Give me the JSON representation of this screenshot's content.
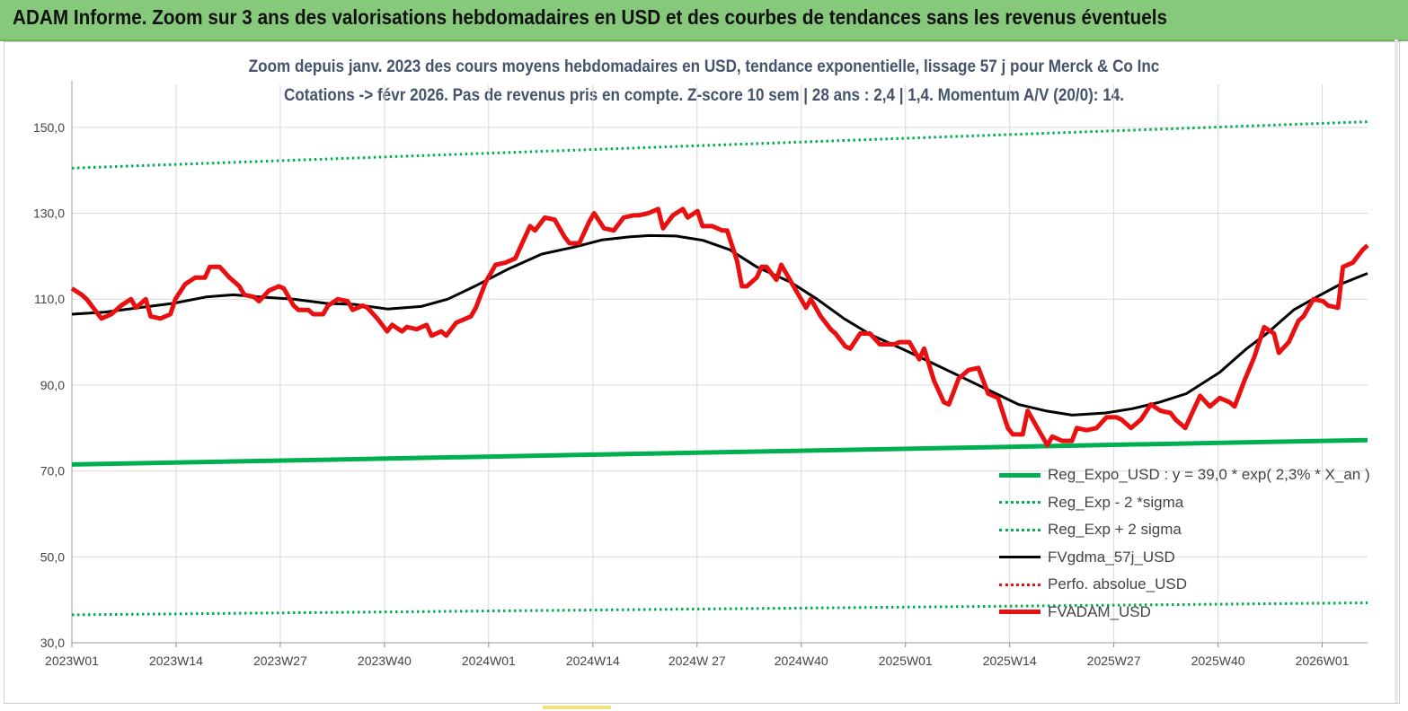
{
  "banner": {
    "title": "ADAM Informe. Zoom sur 3 ans des valorisations hebdomadaires en USD et des courbes de tendances sans les revenus éventuels"
  },
  "colors": {
    "banner_bg": "#86c97a",
    "title_text": "#44546a",
    "reg_expo": "#00b050",
    "band": "#00b050",
    "smooth": "#000000",
    "price": "#e81010",
    "perfo": "#e81010",
    "grid": "#d9d9d9"
  },
  "chart_data": {
    "type": "line",
    "title_line1": "Zoom depuis janv. 2023 des cours moyens hebdomadaires en USD, tendance exponentielle, lissage 57 j pour Merck & Co Inc",
    "title_line2": "Cotations -> févr 2026.  Pas de revenus pris en compte. Z-score 10 sem  | 28 ans : 2,4  | 1,4. Momentum A/V (20/0): 14.",
    "xlabel": "",
    "ylabel": "",
    "ylim": [
      30,
      160
    ],
    "y_ticks": [
      "30,0",
      "50,0",
      "70,0",
      "90,0",
      "110,0",
      "130,0",
      "150,0"
    ],
    "x_tick_labels": [
      "2023W01",
      "2023W14",
      "2023W27",
      "2023W40",
      "2024W01",
      "2024W14",
      "2024W 27",
      "2024W40",
      "2025W01",
      "2025W14",
      "2025W27",
      "2025W40",
      "2026W01"
    ],
    "x_range_weeks": [
      0,
      166
    ],
    "grid": true,
    "legend_position": "bottom-right",
    "series": [
      {
        "name": "Reg_Expo_USD : y = 39,0 * exp( 2,3% *  X_an )",
        "style": "solid-thick",
        "color": "#00b050",
        "points": [
          [
            0,
            71.5
          ],
          [
            166,
            77.2
          ]
        ]
      },
      {
        "name": "Reg_Exp - 2 *sigma",
        "style": "dotted",
        "color": "#00b050",
        "points": [
          [
            0,
            36.5
          ],
          [
            166,
            39.3
          ]
        ]
      },
      {
        "name": "Reg_Exp + 2 sigma",
        "style": "dotted",
        "color": "#00b050",
        "points": [
          [
            0,
            140.5
          ],
          [
            166,
            151.3
          ]
        ]
      },
      {
        "name": "FVgdma_57j_USD",
        "style": "solid",
        "color": "#000000",
        "points": [
          [
            0,
            106.5
          ],
          [
            5,
            107
          ],
          [
            10,
            108
          ],
          [
            15,
            109
          ],
          [
            20,
            110.5
          ],
          [
            24,
            111
          ],
          [
            28,
            110.5
          ],
          [
            33,
            110
          ],
          [
            38,
            109
          ],
          [
            42,
            108.8
          ],
          [
            47,
            107.7
          ],
          [
            52,
            108.3
          ],
          [
            56,
            110
          ],
          [
            60,
            113
          ],
          [
            65,
            117
          ],
          [
            70,
            120.5
          ],
          [
            75,
            122.2
          ],
          [
            79,
            123.8
          ],
          [
            83,
            124.5
          ],
          [
            86,
            124.8
          ],
          [
            90,
            124.7
          ],
          [
            94,
            123.7
          ],
          [
            98,
            121.5
          ],
          [
            102,
            117.5
          ],
          [
            107,
            114
          ],
          [
            111,
            110
          ],
          [
            115,
            105.5
          ],
          [
            119,
            101.7
          ],
          [
            124,
            98.2
          ],
          [
            129,
            94.5
          ],
          [
            133,
            91.5
          ],
          [
            137,
            88.5
          ],
          [
            141,
            85.5
          ],
          [
            145,
            84
          ],
          [
            149,
            83
          ],
          [
            154,
            83.5
          ],
          [
            158,
            84.5
          ],
          [
            162,
            86
          ],
          [
            166,
            88
          ],
          [
            171,
            93
          ],
          [
            175,
            98.5
          ],
          [
            178,
            102
          ],
          [
            182,
            107.5
          ],
          [
            186,
            111
          ],
          [
            189,
            113.5
          ],
          [
            193,
            116
          ]
        ]
      },
      {
        "name": "Perfo. absolue_USD",
        "style": "dotted",
        "color": "#e81010",
        "points": []
      },
      {
        "name": "FVADAM_USD",
        "style": "solid-thick",
        "color": "#e81010",
        "points": [
          [
            0,
            112.5
          ],
          [
            2,
            111
          ],
          [
            3,
            110
          ],
          [
            5,
            107
          ],
          [
            6,
            105.5
          ],
          [
            8,
            106.5
          ],
          [
            10,
            108.5
          ],
          [
            12,
            110
          ],
          [
            13,
            108
          ],
          [
            15,
            110
          ],
          [
            16,
            106
          ],
          [
            18,
            105.5
          ],
          [
            20,
            106.5
          ],
          [
            21,
            110
          ],
          [
            23,
            113.5
          ],
          [
            25,
            115
          ],
          [
            27,
            115
          ],
          [
            28,
            117.5
          ],
          [
            30,
            117.5
          ],
          [
            32,
            115
          ],
          [
            34,
            113
          ],
          [
            35,
            111
          ],
          [
            37,
            110.5
          ],
          [
            38,
            109.5
          ],
          [
            40,
            112
          ],
          [
            42,
            113
          ],
          [
            43,
            112.5
          ],
          [
            45,
            108.5
          ],
          [
            46,
            107.5
          ],
          [
            48,
            107.5
          ],
          [
            49,
            106.5
          ],
          [
            51,
            106.5
          ],
          [
            52,
            108.5
          ],
          [
            54,
            110
          ],
          [
            56,
            109.5
          ],
          [
            57,
            107.5
          ],
          [
            59,
            108.5
          ],
          [
            60,
            108
          ],
          [
            62,
            105.5
          ],
          [
            64,
            102.5
          ],
          [
            65,
            104
          ],
          [
            67,
            102.5
          ],
          [
            68,
            103.5
          ],
          [
            70,
            103
          ],
          [
            72,
            104
          ],
          [
            73,
            101.5
          ],
          [
            75,
            102.5
          ],
          [
            76,
            101.5
          ],
          [
            78,
            104.5
          ],
          [
            79,
            105
          ],
          [
            81,
            106
          ],
          [
            82,
            108
          ],
          [
            84,
            114
          ],
          [
            86,
            118
          ],
          [
            88,
            118.5
          ],
          [
            90,
            119.5
          ],
          [
            91,
            122
          ],
          [
            93,
            127
          ],
          [
            94,
            126
          ],
          [
            96,
            129
          ],
          [
            98,
            128.5
          ],
          [
            100,
            124.5
          ],
          [
            101,
            123
          ],
          [
            103,
            123
          ],
          [
            105,
            128
          ],
          [
            106,
            130
          ],
          [
            108,
            126.5
          ],
          [
            110,
            126
          ],
          [
            112,
            129
          ],
          [
            114,
            129.5
          ],
          [
            115,
            129.5
          ],
          [
            117,
            130
          ],
          [
            119,
            131
          ],
          [
            120,
            126.5
          ],
          [
            122,
            129.5
          ],
          [
            124,
            131
          ],
          [
            125,
            129
          ],
          [
            127,
            130.5
          ],
          [
            128,
            127
          ],
          [
            130,
            127
          ],
          [
            132,
            126
          ],
          [
            133,
            126
          ],
          [
            135,
            119
          ],
          [
            136,
            113
          ],
          [
            137,
            113
          ],
          [
            139,
            115
          ],
          [
            140,
            117.5
          ],
          [
            141,
            117.5
          ],
          [
            143,
            114.5
          ],
          [
            144,
            118
          ],
          [
            146,
            114
          ],
          [
            147,
            112
          ],
          [
            149,
            108
          ],
          [
            150,
            110
          ],
          [
            152,
            106
          ],
          [
            154,
            103
          ],
          [
            155,
            102
          ],
          [
            157,
            99
          ],
          [
            158,
            98.5
          ],
          [
            160,
            102
          ],
          [
            162,
            102
          ],
          [
            164,
            99.5
          ],
          [
            165,
            99.5
          ],
          [
            167,
            99.5
          ],
          [
            168,
            100
          ],
          [
            170,
            100
          ],
          [
            172,
            96
          ],
          [
            173,
            98.5
          ],
          [
            175,
            91
          ],
          [
            177,
            86
          ],
          [
            178,
            85.5
          ],
          [
            180,
            91.5
          ],
          [
            182,
            93.5
          ],
          [
            184,
            94
          ],
          [
            186,
            88
          ],
          [
            188,
            87
          ],
          [
            190,
            80
          ],
          [
            191,
            78.5
          ],
          [
            193,
            78.5
          ],
          [
            194,
            84
          ],
          [
            196,
            80
          ],
          [
            198,
            76
          ],
          [
            199,
            78
          ],
          [
            201,
            77
          ],
          [
            203,
            77
          ],
          [
            204,
            80
          ],
          [
            206,
            79.5
          ],
          [
            208,
            80
          ],
          [
            210,
            82.5
          ],
          [
            212,
            82.5
          ],
          [
            213,
            82
          ],
          [
            215,
            80
          ],
          [
            217,
            82
          ],
          [
            219,
            85.5
          ],
          [
            221,
            84
          ],
          [
            223,
            83.5
          ],
          [
            224,
            82
          ],
          [
            226,
            80
          ],
          [
            228,
            85
          ],
          [
            229,
            87.5
          ],
          [
            231,
            85
          ],
          [
            233,
            87
          ],
          [
            235,
            86
          ],
          [
            236,
            85
          ],
          [
            238,
            91
          ],
          [
            240,
            96.5
          ],
          [
            242,
            103.5
          ],
          [
            244,
            102
          ],
          [
            245,
            97.5
          ],
          [
            247,
            100
          ],
          [
            249,
            105
          ],
          [
            250,
            106
          ],
          [
            252,
            110
          ],
          [
            254,
            109.5
          ],
          [
            255,
            108.5
          ],
          [
            257,
            108
          ],
          [
            258,
            117.5
          ],
          [
            260,
            118.5
          ],
          [
            262,
            121.5
          ],
          [
            263,
            122.5
          ]
        ]
      }
    ]
  }
}
